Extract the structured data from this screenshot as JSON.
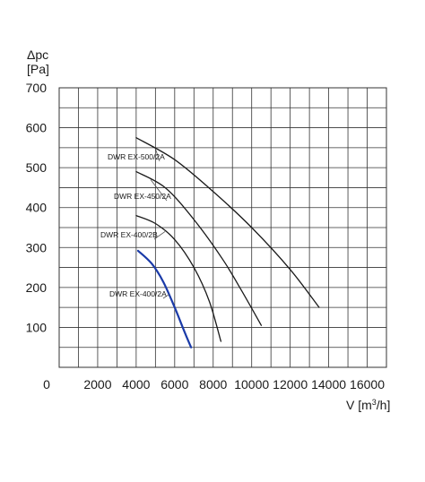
{
  "chart_data": {
    "type": "line",
    "ylabel_symbol": "Δpc",
    "ylabel_unit": "[Pa]",
    "xlabel": "V [m",
    "xlabel_sup": "3",
    "xlabel_end": "/h]",
    "xlim": [
      0,
      17000
    ],
    "ylim": [
      0,
      700
    ],
    "x_ticks": [
      0,
      2000,
      4000,
      6000,
      8000,
      10000,
      12000,
      14000,
      16000
    ],
    "x_tick_labels": [
      "0",
      "2000",
      "4000",
      "6000",
      "8000",
      "10000",
      "12000",
      "14000",
      "16000"
    ],
    "y_ticks": [
      100,
      200,
      300,
      400,
      500,
      600,
      700
    ],
    "y_tick_labels": [
      "100",
      "200",
      "300",
      "400",
      "500",
      "600",
      "700"
    ],
    "grid": true,
    "series": [
      {
        "name": "DWR EX-500/2A",
        "color": "#1a1a1a",
        "x": [
          4000,
          6000,
          8000,
          10000,
          12000,
          13500
        ],
        "y": [
          575,
          520,
          440,
          350,
          245,
          150
        ]
      },
      {
        "name": "DWR EX-450/2A",
        "color": "#1a1a1a",
        "x": [
          4000,
          5500,
          7000,
          8500,
          9500,
          10500
        ],
        "y": [
          490,
          450,
          370,
          270,
          190,
          105
        ]
      },
      {
        "name": "DWR EX-400/2B",
        "color": "#1a1a1a",
        "x": [
          4000,
          5000,
          6000,
          7000,
          7800,
          8400
        ],
        "y": [
          380,
          360,
          320,
          250,
          165,
          65
        ]
      },
      {
        "name": "DWR EX-400/2A",
        "color": "#1a3aa8",
        "x": [
          4100,
          4800,
          5400,
          6000,
          6500,
          6850
        ],
        "y": [
          292,
          260,
          215,
          150,
          90,
          50
        ]
      }
    ]
  }
}
